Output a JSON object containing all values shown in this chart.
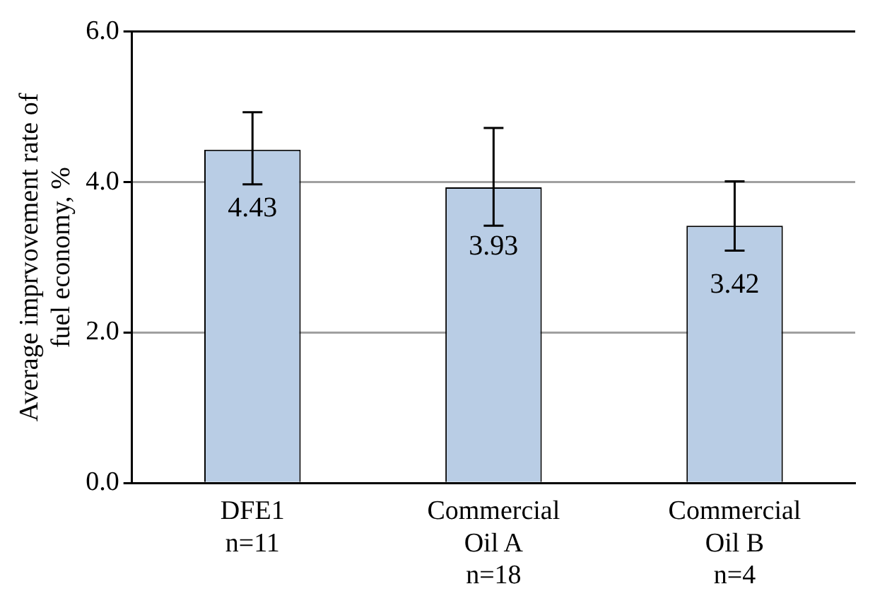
{
  "chart_data": {
    "type": "bar",
    "ylabel": "Average imprvovement rate of\nfuel economy, %",
    "categories": [
      "DFE1\nn=11",
      "Commercial\nOil A\nn=18",
      "Commercial\nOil B\nn=4"
    ],
    "values": [
      4.43,
      3.93,
      3.42
    ],
    "color": "#b9cde5",
    "errors": [
      [
        3.97,
        4.93
      ],
      [
        3.42,
        4.72
      ],
      [
        3.09,
        4.01
      ]
    ],
    "ylim": [
      0,
      6
    ],
    "yticks": [
      {
        "value": 0,
        "label": "0.0"
      },
      {
        "value": 2,
        "label": "2.0"
      },
      {
        "value": 4,
        "label": "4.0"
      },
      {
        "value": 6,
        "label": "6.0"
      }
    ],
    "grid": "y",
    "legend": false,
    "data_labels": true
  }
}
